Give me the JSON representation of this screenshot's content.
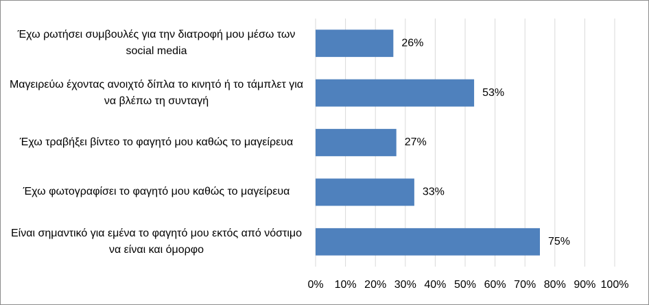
{
  "chart_data": {
    "type": "barh",
    "categories": [
      "Έχω ρωτήσει συμβουλές για την διατροφή μου μέσω των social media",
      "Μαγειρεύω έχοντας ανοιχτό δίπλα το κινητό ή το τάμπλετ για να βλέπω τη συνταγή",
      "Έχω τραβήξει βίντεο το φαγητό μου καθώς το μαγείρευα",
      "Έχω φωτογραφίσει το φαγητό μου καθώς το μαγείρευα",
      "Είναι σημαντικό για εμένα το φαγητό μου εκτός από νόστιμο να είναι και όμορφο"
    ],
    "values": [
      26,
      53,
      27,
      33,
      75
    ],
    "value_labels": [
      "26%",
      "53%",
      "27%",
      "33%",
      "75%"
    ],
    "color": "#4f81bd",
    "xlim": [
      0,
      100
    ],
    "xticks": [
      {
        "value": 0,
        "label": "0%"
      },
      {
        "value": 10,
        "label": "10%"
      },
      {
        "value": 20,
        "label": "20%"
      },
      {
        "value": 30,
        "label": "30%"
      },
      {
        "value": 40,
        "label": "40%"
      },
      {
        "value": 50,
        "label": "50%"
      },
      {
        "value": 60,
        "label": "60%"
      },
      {
        "value": 70,
        "label": "70%"
      },
      {
        "value": 80,
        "label": "80%"
      },
      {
        "value": 90,
        "label": "90%"
      },
      {
        "value": 100,
        "label": "100%"
      }
    ],
    "grid": true
  }
}
